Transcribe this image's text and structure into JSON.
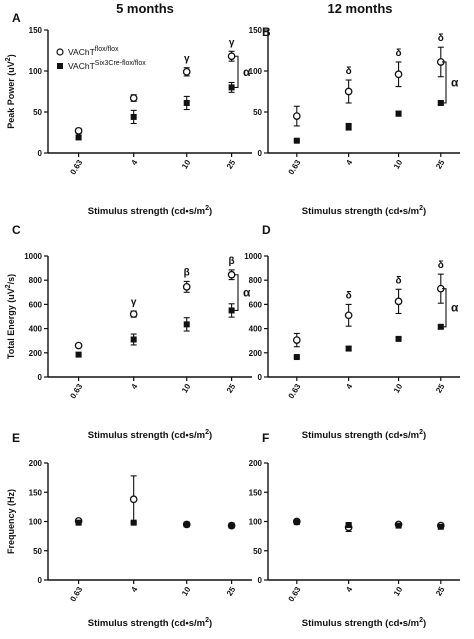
{
  "columns": [
    "5  months",
    "12  months"
  ],
  "legend": {
    "series": [
      {
        "base": "VAChT",
        "sup": "flox/flox",
        "marker": "open-circle"
      },
      {
        "base": "VAChT",
        "sup": "Six3Cre-flox/flox",
        "marker": "filled-square"
      }
    ]
  },
  "xaxis_label": {
    "main": "Stimulus strength (cd•s/m",
    "sup": "2",
    "end": ")"
  },
  "chart_data": [
    {
      "panel": "A",
      "type": "scatter",
      "ylabel": {
        "main": "Peak Power (uV",
        "sup": "2",
        "end": ")"
      },
      "categories": [
        "0.63",
        "4",
        "10",
        "25"
      ],
      "ylim": [
        0,
        150
      ],
      "yticks": [
        0,
        50,
        100,
        150
      ],
      "series": [
        {
          "name": "VAChT flox/flox",
          "values": [
            27,
            67,
            99,
            118
          ],
          "err": [
            3,
            4,
            5,
            6
          ]
        },
        {
          "name": "VAChT Six3Cre-flox/flox",
          "values": [
            19,
            44,
            61,
            80
          ],
          "err": [
            2,
            8,
            8,
            6
          ]
        }
      ],
      "annotations": [
        "",
        "",
        "γ",
        "γ"
      ],
      "bracket": "α"
    },
    {
      "panel": "B",
      "type": "scatter",
      "ylabel": {
        "main": "",
        "sup": "",
        "end": ""
      },
      "categories": [
        "0.63",
        "4",
        "10",
        "25"
      ],
      "ylim": [
        0,
        150
      ],
      "yticks": [
        0,
        50,
        100,
        150
      ],
      "series": [
        {
          "name": "VAChT flox/flox",
          "values": [
            45,
            75,
            96,
            111
          ],
          "err": [
            12,
            14,
            15,
            18
          ]
        },
        {
          "name": "VAChT Six3Cre-flox/flox",
          "values": [
            15,
            32,
            48,
            61
          ],
          "err": [
            1,
            4,
            3,
            2
          ]
        }
      ],
      "annotations": [
        "",
        "δ",
        "δ",
        "δ"
      ],
      "bracket": "α"
    },
    {
      "panel": "C",
      "type": "scatter",
      "ylabel": {
        "main": "Total Energy (uV",
        "sup": "2",
        "end": "/s)"
      },
      "categories": [
        "0.63",
        "4",
        "10",
        "25"
      ],
      "ylim": [
        0,
        1000
      ],
      "yticks": [
        0,
        200,
        400,
        600,
        800,
        1000
      ],
      "series": [
        {
          "name": "VAChT flox/flox",
          "values": [
            260,
            520,
            745,
            845
          ],
          "err": [
            15,
            25,
            45,
            40
          ]
        },
        {
          "name": "VAChT Six3Cre-flox/flox",
          "values": [
            185,
            310,
            435,
            550
          ],
          "err": [
            15,
            45,
            55,
            55
          ]
        }
      ],
      "annotations": [
        "",
        "γ",
        "β",
        "β"
      ],
      "bracket": "α"
    },
    {
      "panel": "D",
      "type": "scatter",
      "ylabel": {
        "main": "",
        "sup": "",
        "end": ""
      },
      "categories": [
        "0.63",
        "4",
        "10",
        "25"
      ],
      "ylim": [
        0,
        1000
      ],
      "yticks": [
        0,
        200,
        400,
        600,
        800,
        1000
      ],
      "series": [
        {
          "name": "VAChT flox/flox",
          "values": [
            305,
            510,
            625,
            730
          ],
          "err": [
            55,
            90,
            100,
            120
          ]
        },
        {
          "name": "VAChT Six3Cre-flox/flox",
          "values": [
            165,
            235,
            315,
            415
          ],
          "err": [
            10,
            15,
            12,
            15
          ]
        }
      ],
      "annotations": [
        "",
        "δ",
        "δ",
        "δ"
      ],
      "bracket": "α"
    },
    {
      "panel": "E",
      "type": "scatter",
      "ylabel": {
        "main": "Frequency (Hz)",
        "sup": "",
        "end": ""
      },
      "categories": [
        "0.63",
        "4",
        "10",
        "25"
      ],
      "ylim": [
        0,
        200
      ],
      "yticks": [
        0,
        50,
        100,
        150,
        200
      ],
      "series": [
        {
          "name": "VAChT flox/flox",
          "values": [
            101,
            138,
            95,
            93
          ],
          "err": [
            3,
            40,
            2,
            2
          ]
        },
        {
          "name": "VAChT Six3Cre-flox/flox",
          "values": [
            98,
            98,
            95,
            93
          ],
          "err": [
            2,
            2,
            1,
            1
          ]
        }
      ],
      "annotations": [
        "",
        "",
        "",
        ""
      ],
      "bracket": ""
    },
    {
      "panel": "F",
      "type": "scatter",
      "ylabel": {
        "main": "",
        "sup": "",
        "end": ""
      },
      "categories": [
        "0.63",
        "4",
        "10",
        "25"
      ],
      "ylim": [
        0,
        200
      ],
      "yticks": [
        0,
        50,
        100,
        150,
        200
      ],
      "series": [
        {
          "name": "VAChT flox/flox",
          "values": [
            100,
            90,
            95,
            93
          ],
          "err": [
            2,
            7,
            2,
            2
          ]
        },
        {
          "name": "VAChT Six3Cre-flox/flox",
          "values": [
            99,
            94,
            93,
            91
          ],
          "err": [
            2,
            2,
            1,
            1
          ]
        }
      ],
      "annotations": [
        "",
        "",
        "",
        ""
      ],
      "bracket": ""
    }
  ]
}
